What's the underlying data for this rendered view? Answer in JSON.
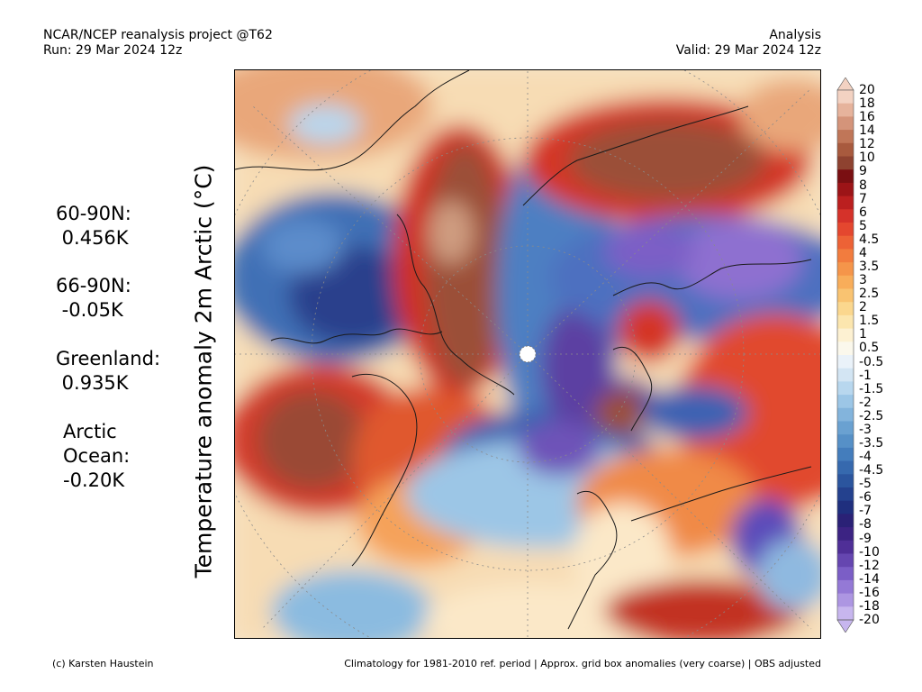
{
  "header": {
    "left_line1": "NCAR/NCEP reanalysis project @T62",
    "left_line2": "Run: 29 Mar 2024 12z",
    "right_line1": "Analysis",
    "right_line2": "Valid: 29 Mar 2024 12z"
  },
  "axis_label": "Temperature anomaly 2m Arctic (°C)",
  "stats": [
    {
      "region": "60-90N:",
      "value": " 0.456K"
    },
    {
      "region": "66-90N:",
      "value": " -0.05K"
    },
    {
      "region": "Greenland:",
      "value": " 0.935K"
    },
    {
      "region": "Arctic\nOcean:",
      "value": "-0.20K"
    }
  ],
  "colorbar": {
    "labels": [
      "20",
      "18",
      "16",
      "14",
      "12",
      "10",
      "9",
      "8",
      "7",
      "6",
      "5",
      "4.5",
      "4",
      "3.5",
      "3",
      "2.5",
      "2",
      "1.5",
      "1",
      "0.5",
      "-0.5",
      "-1",
      "-1.5",
      "-2",
      "-2.5",
      "-3",
      "-3.5",
      "-4",
      "-4.5",
      "-5",
      "-6",
      "-7",
      "-8",
      "-9",
      "-10",
      "-12",
      "-14",
      "-16",
      "-18",
      "-20"
    ],
    "colors": [
      "#f3d2c2",
      "#e6b39c",
      "#d4947a",
      "#c07658",
      "#a85a3e",
      "#8e4230",
      "#7a0f12",
      "#9c1417",
      "#bb1f1f",
      "#d5322a",
      "#e4472f",
      "#ed6236",
      "#f27c3e",
      "#f5954a",
      "#f8ad5a",
      "#f9c371",
      "#fbd78e",
      "#fce6ae",
      "#fdf1d2",
      "#fbf8ec",
      "#eaf2f9",
      "#d3e5f3",
      "#b8d7ee",
      "#9cc6e6",
      "#83b4dc",
      "#6aa1d1",
      "#5690c7",
      "#447dbc",
      "#3669ae",
      "#2b559e",
      "#24418e",
      "#1f2f7e",
      "#2a2176",
      "#3c2383",
      "#4f2f97",
      "#6546b0",
      "#7b5ec6",
      "#9479d6",
      "#ad96e2",
      "#c7b6ee"
    ]
  },
  "footer": {
    "left": "(c) Karsten Haustein",
    "right": "Climatology for 1981-2010 ref. period | Approx. grid box anomalies (very coarse) | OBS adjusted"
  }
}
